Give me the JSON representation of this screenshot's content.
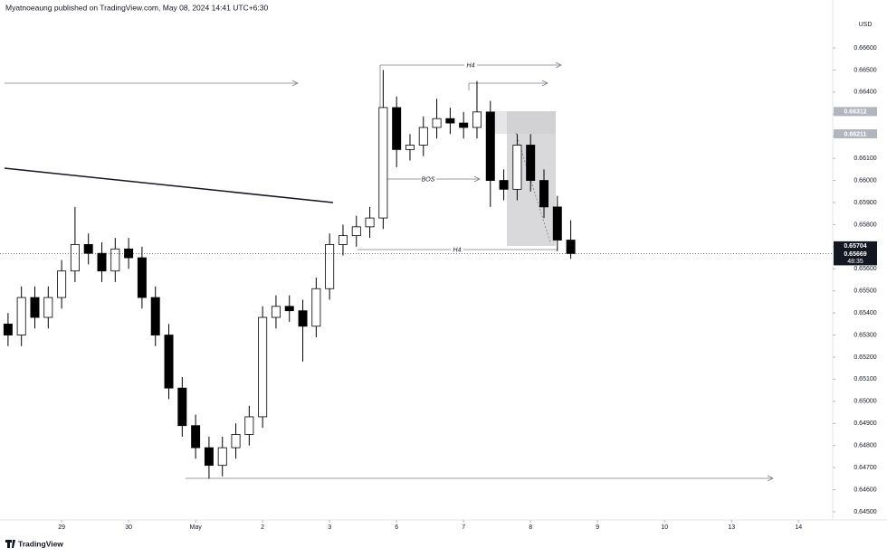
{
  "header": {
    "text": "Myatnoeaung published on TradingView.com, May 08, 2024 14:41 UTC+6:30",
    "brand": "TradingView"
  },
  "chart_data": {
    "type": "candlestick",
    "currency": "USD",
    "x": [
      -0.8,
      -0.6,
      -0.4,
      -0.2,
      0,
      0.2,
      0.4,
      0.6,
      0.8,
      1,
      1.2,
      1.4,
      1.6,
      1.8,
      2,
      2.2,
      2.4,
      2.6,
      2.8,
      3,
      3.2,
      3.4,
      3.6,
      3.8,
      4,
      4.2,
      4.4,
      4.6,
      4.8,
      5,
      5.2,
      5.4,
      5.6,
      5.8,
      6,
      6.2,
      6.4,
      6.6,
      6.8,
      7,
      7.2,
      7.4,
      7.6
    ],
    "open": [
      0.6535,
      0.653,
      0.6547,
      0.6538,
      0.6547,
      0.6559,
      0.6571,
      0.6567,
      0.6559,
      0.6569,
      0.6565,
      0.6547,
      0.653,
      0.6506,
      0.6489,
      0.6479,
      0.6471,
      0.6479,
      0.6485,
      0.6493,
      0.6538,
      0.6543,
      0.6541,
      0.6534,
      0.6551,
      0.6571,
      0.6575,
      0.6579,
      0.6583,
      0.6633,
      0.6614,
      0.6616,
      0.6624,
      0.6628,
      0.6626,
      0.6624,
      0.6631,
      0.66,
      0.6596,
      0.6616,
      0.66,
      0.6588,
      0.6573
    ],
    "high": [
      0.654,
      0.6552,
      0.6552,
      0.6552,
      0.6564,
      0.6588,
      0.6576,
      0.6572,
      0.6574,
      0.6574,
      0.657,
      0.6552,
      0.6535,
      0.6511,
      0.6494,
      0.6484,
      0.6484,
      0.649,
      0.6498,
      0.6543,
      0.6548,
      0.6548,
      0.6546,
      0.6556,
      0.6576,
      0.658,
      0.6584,
      0.6588,
      0.665,
      0.6638,
      0.6621,
      0.6629,
      0.6637,
      0.6633,
      0.6631,
      0.6645,
      0.6636,
      0.6605,
      0.6621,
      0.6621,
      0.6605,
      0.6593,
      0.6582
    ],
    "low": [
      0.6525,
      0.6525,
      0.6533,
      0.6533,
      0.6542,
      0.6554,
      0.6562,
      0.6554,
      0.6554,
      0.656,
      0.6542,
      0.6525,
      0.6501,
      0.6484,
      0.6474,
      0.6465,
      0.6466,
      0.6474,
      0.648,
      0.6488,
      0.6533,
      0.6536,
      0.6518,
      0.6529,
      0.6546,
      0.6566,
      0.657,
      0.6574,
      0.6578,
      0.6606,
      0.6609,
      0.6611,
      0.6619,
      0.6621,
      0.6619,
      0.6619,
      0.6588,
      0.6591,
      0.6591,
      0.6595,
      0.6583,
      0.6568,
      0.65645
    ],
    "close": [
      0.653,
      0.6547,
      0.6538,
      0.6547,
      0.6559,
      0.6571,
      0.6567,
      0.6559,
      0.6569,
      0.6565,
      0.6547,
      0.653,
      0.6506,
      0.6489,
      0.6479,
      0.6471,
      0.6479,
      0.6485,
      0.6493,
      0.6538,
      0.6543,
      0.6541,
      0.6534,
      0.6551,
      0.6571,
      0.6575,
      0.6579,
      0.6583,
      0.6633,
      0.6614,
      0.6616,
      0.6624,
      0.6628,
      0.6626,
      0.6624,
      0.6631,
      0.66,
      0.6596,
      0.6616,
      0.66,
      0.6588,
      0.6573,
      0.65669
    ],
    "up_color": "#ffffff",
    "down_color": "#000000",
    "wick_color": "#000000",
    "xlim": [
      -0.92,
      11.51
    ],
    "xticks": [
      {
        "value": 0,
        "label": "29"
      },
      {
        "value": 1,
        "label": "30"
      },
      {
        "value": 2,
        "label": "May"
      },
      {
        "value": 3,
        "label": "2"
      },
      {
        "value": 4,
        "label": "3"
      },
      {
        "value": 5,
        "label": "6"
      },
      {
        "value": 6,
        "label": "7"
      },
      {
        "value": 7,
        "label": "8"
      },
      {
        "value": 8,
        "label": "9"
      },
      {
        "value": 9,
        "label": "10"
      },
      {
        "value": 10,
        "label": "13"
      },
      {
        "value": 11,
        "label": "14"
      }
    ],
    "ylim": [
      0.64463,
      0.66817
    ],
    "yticks": [
      {
        "value": 0.645,
        "label": "0.64500"
      },
      {
        "value": 0.646,
        "label": "0.64600"
      },
      {
        "value": 0.647,
        "label": "0.64700"
      },
      {
        "value": 0.648,
        "label": "0.64800"
      },
      {
        "value": 0.649,
        "label": "0.64900"
      },
      {
        "value": 0.65,
        "label": "0.65000"
      },
      {
        "value": 0.651,
        "label": "0.65100"
      },
      {
        "value": 0.652,
        "label": "0.65200"
      },
      {
        "value": 0.653,
        "label": "0.65300"
      },
      {
        "value": 0.654,
        "label": "0.65400"
      },
      {
        "value": 0.655,
        "label": "0.65500"
      },
      {
        "value": 0.656,
        "label": "0.65600"
      },
      {
        "value": 0.657,
        "label": "0.65700"
      },
      {
        "value": 0.658,
        "label": "0.65800"
      },
      {
        "value": 0.659,
        "label": "0.65900"
      },
      {
        "value": 0.66,
        "label": "0.66000"
      },
      {
        "value": 0.661,
        "label": "0.66100"
      },
      {
        "value": 0.662,
        "label": "0.66200"
      },
      {
        "value": 0.663,
        "label": "0.66300"
      },
      {
        "value": 0.664,
        "label": "0.66400"
      },
      {
        "value": 0.665,
        "label": "0.66500"
      },
      {
        "value": 0.666,
        "label": "0.66600"
      }
    ],
    "grid": false,
    "price_labels": [
      {
        "value": 0.66312,
        "label": "0.66312",
        "color": "#b2b5be"
      },
      {
        "value": 0.66211,
        "label": "0.66211",
        "color": "#b2b5be"
      },
      {
        "value": 0.65704,
        "label": "0.65704",
        "color": "#131722"
      },
      {
        "value": 0.65669,
        "label": "0.65669",
        "color": "#131722"
      }
    ],
    "countdown": "48:35",
    "annotations": [
      "H4",
      "BOS",
      "H4"
    ]
  }
}
